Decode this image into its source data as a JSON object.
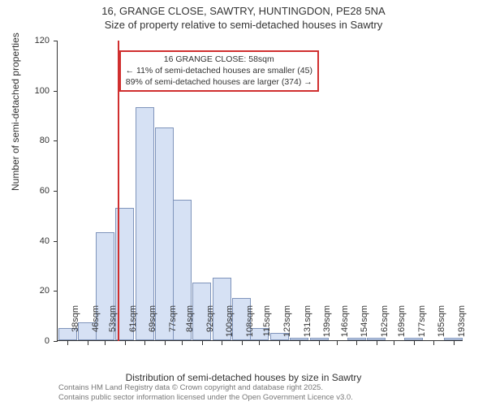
{
  "title": {
    "line1": "16, GRANGE CLOSE, SAWTRY, HUNTINGDON, PE28 5NA",
    "line2": "Size of property relative to semi-detached houses in Sawtry"
  },
  "chart": {
    "type": "histogram",
    "background_color": "#ffffff",
    "bar_fill": "#d6e1f4",
    "bar_border": "#7f94bb",
    "axis_color": "#333333",
    "text_color": "#333333",
    "marker_color": "#d02f2f",
    "xlim": [
      34,
      197
    ],
    "ylim": [
      0,
      120
    ],
    "ytick_step": 20,
    "xticks": [
      38,
      46,
      53,
      61,
      69,
      77,
      84,
      92,
      100,
      108,
      115,
      123,
      131,
      139,
      146,
      154,
      162,
      169,
      177,
      185,
      193
    ],
    "xtick_suffix": "sqm",
    "yaxis_label": "Number of semi-detached properties",
    "xaxis_label": "Distribution of semi-detached houses by size in Sawtry",
    "bar_width_sqm": 7.5,
    "bars": [
      {
        "x": 38,
        "y": 5
      },
      {
        "x": 46,
        "y": 7
      },
      {
        "x": 53,
        "y": 43
      },
      {
        "x": 61,
        "y": 53
      },
      {
        "x": 69,
        "y": 93
      },
      {
        "x": 77,
        "y": 85
      },
      {
        "x": 84,
        "y": 56
      },
      {
        "x": 92,
        "y": 23
      },
      {
        "x": 100,
        "y": 25
      },
      {
        "x": 108,
        "y": 17
      },
      {
        "x": 115,
        "y": 5
      },
      {
        "x": 123,
        "y": 3
      },
      {
        "x": 131,
        "y": 1
      },
      {
        "x": 139,
        "y": 1
      },
      {
        "x": 146,
        "y": 0
      },
      {
        "x": 154,
        "y": 1
      },
      {
        "x": 162,
        "y": 1
      },
      {
        "x": 169,
        "y": 0
      },
      {
        "x": 177,
        "y": 1
      },
      {
        "x": 185,
        "y": 0
      },
      {
        "x": 193,
        "y": 1
      }
    ],
    "marker_x": 58,
    "annotation": {
      "title": "16 GRANGE CLOSE: 58sqm",
      "line1": "← 11% of semi-detached houses are smaller (45)",
      "line2": "89% of semi-detached houses are larger (374) →",
      "left_sqm": 58,
      "top_yval": 116
    }
  },
  "footer": {
    "line1": "Contains HM Land Registry data © Crown copyright and database right 2025.",
    "line2": "Contains public sector information licensed under the Open Government Licence v3.0."
  }
}
